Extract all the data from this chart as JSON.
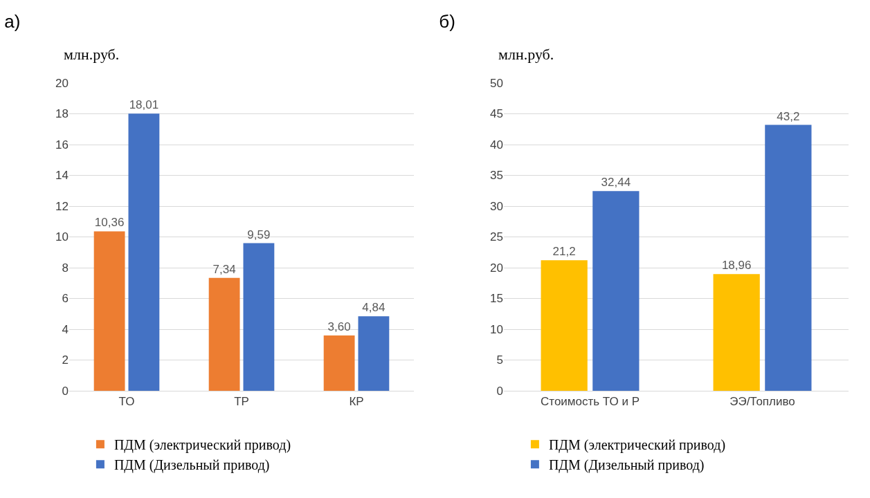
{
  "chart_data": [
    {
      "type": "bar",
      "title": "а)",
      "ylabel": "млн.руб.",
      "categories": [
        "ТО",
        "ТР",
        "КР"
      ],
      "ylim": [
        0,
        20
      ],
      "yticks": [
        0,
        2,
        4,
        6,
        8,
        10,
        12,
        14,
        16,
        18,
        20
      ],
      "grid": "y",
      "legend": "bottom",
      "series": [
        {
          "name": "ПДМ (электрический привод)",
          "color": "#ed7d31",
          "values": [
            10.36,
            7.34,
            3.6
          ],
          "value_labels": [
            "10,36",
            "7,34",
            "3,60"
          ]
        },
        {
          "name": "ПДМ (Дизельный привод)",
          "color": "#4472c4",
          "values": [
            18.01,
            9.59,
            4.84
          ],
          "value_labels": [
            "18,01",
            "9,59",
            "4,84"
          ]
        }
      ]
    },
    {
      "type": "bar",
      "title": "б)",
      "ylabel": "млн.руб.",
      "categories": [
        "Стоимость ТО и Р",
        "ЭЭ/Топливо"
      ],
      "ylim": [
        0,
        50
      ],
      "yticks": [
        0,
        5,
        10,
        15,
        20,
        25,
        30,
        35,
        40,
        45,
        50
      ],
      "grid": "y",
      "legend": "bottom",
      "series": [
        {
          "name": "ПДМ (электрический привод)",
          "color": "#ffc000",
          "values": [
            21.2,
            18.96
          ],
          "value_labels": [
            "21,2",
            "18,96"
          ]
        },
        {
          "name": "ПДМ (Дизельный привод)",
          "color": "#4472c4",
          "values": [
            32.44,
            43.2
          ],
          "value_labels": [
            "32,44",
            "43,2"
          ]
        }
      ]
    }
  ]
}
